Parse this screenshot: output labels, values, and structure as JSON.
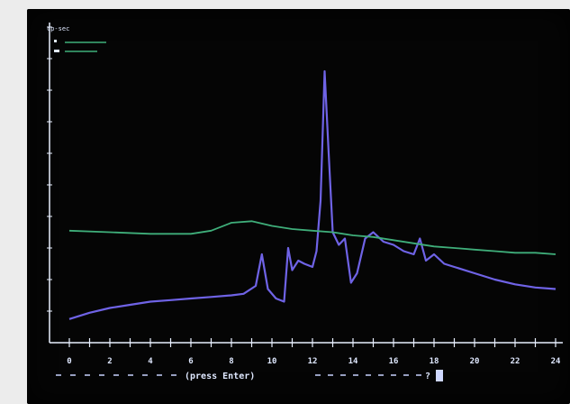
{
  "screen": {
    "unit_label": "cp-sec",
    "prompt_text": "(press Enter)",
    "prompt_marker": "?"
  },
  "colors": {
    "background": "#050505",
    "axis": "#e8f0ff",
    "series_1": "#6f63e6",
    "series_2": "#3fae7a"
  },
  "chart_data": {
    "type": "line",
    "xlim": [
      -0.5,
      24.5
    ],
    "ylim": [
      0,
      10
    ],
    "x_ticks": [
      0,
      2,
      4,
      6,
      8,
      10,
      12,
      14,
      16,
      18,
      20,
      22,
      24
    ],
    "y_ticks": [
      1,
      2,
      3,
      4,
      5,
      6,
      7,
      8,
      9,
      10
    ],
    "legend_position": "top-left",
    "series": [
      {
        "key": "series_1",
        "color": "#6f63e6",
        "x": [
          0,
          1,
          2,
          3,
          4,
          5,
          6,
          7,
          8,
          8.6,
          9.2,
          9.5,
          9.8,
          10.2,
          10.6,
          10.8,
          11.0,
          11.3,
          11.6,
          12.0,
          12.2,
          12.4,
          12.6,
          12.8,
          13.0,
          13.3,
          13.6,
          13.9,
          14.2,
          14.6,
          15.0,
          15.5,
          16.0,
          16.5,
          17.0,
          17.3,
          17.6,
          18.0,
          18.5,
          19.0,
          20.0,
          21.0,
          22.0,
          23.0,
          24.0
        ],
        "y": [
          0.75,
          0.95,
          1.1,
          1.2,
          1.3,
          1.35,
          1.4,
          1.45,
          1.5,
          1.55,
          1.8,
          2.8,
          1.7,
          1.4,
          1.3,
          3.0,
          2.3,
          2.6,
          2.5,
          2.4,
          2.9,
          4.5,
          8.6,
          6.0,
          3.5,
          3.1,
          3.3,
          1.9,
          2.2,
          3.3,
          3.5,
          3.2,
          3.1,
          2.9,
          2.8,
          3.3,
          2.6,
          2.8,
          2.5,
          2.4,
          2.2,
          2.0,
          1.85,
          1.75,
          1.7
        ]
      },
      {
        "key": "series_2",
        "color": "#3fae7a",
        "x": [
          0,
          2,
          4,
          6,
          7,
          8,
          9,
          10,
          11,
          12,
          13,
          14,
          15,
          16,
          17,
          18,
          19,
          20,
          21,
          22,
          23,
          24
        ],
        "y": [
          3.55,
          3.5,
          3.45,
          3.45,
          3.55,
          3.8,
          3.85,
          3.7,
          3.6,
          3.55,
          3.5,
          3.4,
          3.35,
          3.25,
          3.15,
          3.05,
          3.0,
          2.95,
          2.9,
          2.85,
          2.85,
          2.8
        ]
      }
    ]
  }
}
